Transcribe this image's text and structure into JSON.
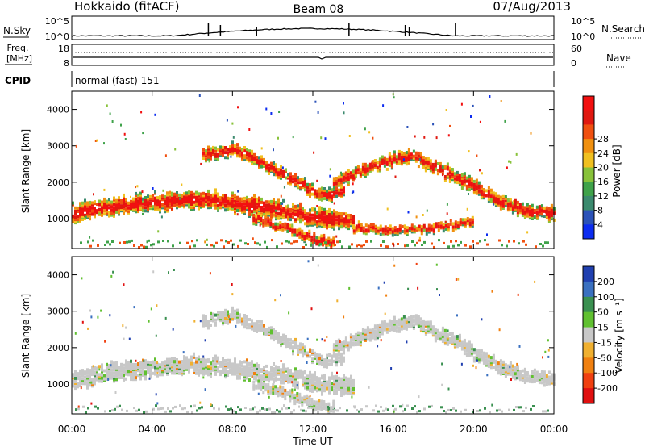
{
  "header": {
    "station": "Hokkaido (fitACF)",
    "beam": "Beam 08",
    "date": "07/Aug/2013"
  },
  "noise_panel": {
    "left_label": "N.Sky",
    "right_label": "N.Search",
    "y_ticks": [
      "10^5",
      "10^0"
    ],
    "right_ticks": [
      "10^5",
      "10^0"
    ]
  },
  "freq_panel": {
    "left_label_line1": "Freq.",
    "left_label_line2": "[MHz]",
    "left_ticks": [
      "18",
      "8"
    ],
    "right_label": "Nave",
    "right_ticks": [
      "60",
      "0"
    ]
  },
  "cpid_panel": {
    "label": "CPID",
    "value": "normal (fast) 151"
  },
  "x_axis": {
    "label": "Time UT",
    "ticks": [
      "00:00",
      "04:00",
      "08:00",
      "12:00",
      "16:00",
      "20:00",
      "00:00"
    ]
  },
  "chart_data": [
    {
      "type": "heatmap",
      "name": "power",
      "x": "Time UT (hours)",
      "xlim": [
        0,
        24
      ],
      "ylabel": "Slant Range [km]",
      "ylim": [
        180,
        4500
      ],
      "y_ticks": [
        "1000",
        "2000",
        "3000",
        "4000"
      ],
      "colorbar_label": "Power [dB]",
      "colorbar_ticks": [
        "4",
        "8",
        "12",
        "16",
        "20",
        "24",
        "28"
      ],
      "colorbar_colors": [
        "#0c2cf0",
        "#2b52b8",
        "#3b8a6e",
        "#3fa24a",
        "#88c23a",
        "#f0c020",
        "#f09010",
        "#f05010",
        "#e01810",
        "#f21010"
      ],
      "echo_bands": [
        {
          "t": [
            0,
            2,
            4,
            6,
            8,
            10,
            12,
            13,
            14
          ],
          "r": [
            1100,
            1300,
            1400,
            1500,
            1400,
            1250,
            1000,
            950,
            900
          ],
          "width": 450
        },
        {
          "t": [
            13,
            14.5,
            16,
            17,
            18,
            19.5,
            21,
            22.5,
            24
          ],
          "r": [
            1900,
            2300,
            2600,
            2700,
            2400,
            2000,
            1500,
            1200,
            1100
          ],
          "width": 330
        },
        {
          "t": [
            6.5,
            8,
            9.5,
            11,
            12.5,
            13.5
          ],
          "r": [
            2700,
            2850,
            2500,
            2000,
            1600,
            1700
          ],
          "width": 300
        },
        {
          "t": [
            9,
            10.5,
            12,
            13
          ],
          "r": [
            1000,
            700,
            400,
            300
          ],
          "width": 250
        },
        {
          "t": [
            14,
            16,
            18,
            20
          ],
          "r": [
            700,
            650,
            700,
            900
          ],
          "width": 200
        }
      ]
    },
    {
      "type": "heatmap",
      "name": "velocity",
      "x": "Time UT (hours)",
      "xlim": [
        0,
        24
      ],
      "ylabel": "Slant Range [km]",
      "ylim": [
        180,
        4500
      ],
      "y_ticks": [
        "1000",
        "2000",
        "3000",
        "4000"
      ],
      "colorbar_label": "Velocity [m s⁻¹]",
      "colorbar_ticks": [
        "200",
        "100",
        "50",
        "15",
        "-15",
        "-50",
        "-100",
        "-200"
      ],
      "colorbar_colors": [
        "#2040b0",
        "#3a70c0",
        "#3a9050",
        "#60c030",
        "#c8c8c8",
        "#f0b030",
        "#f08010",
        "#f04010",
        "#e01010"
      ],
      "echo_bands": [
        {
          "t": [
            0,
            2,
            4,
            6,
            8,
            10,
            12,
            13,
            14
          ],
          "r": [
            1100,
            1300,
            1400,
            1500,
            1400,
            1250,
            1000,
            950,
            900
          ],
          "width": 450
        },
        {
          "t": [
            13,
            14.5,
            16,
            17,
            18,
            19.5,
            21,
            22.5,
            24
          ],
          "r": [
            1900,
            2300,
            2600,
            2700,
            2400,
            2000,
            1500,
            1200,
            1100
          ],
          "width": 330
        },
        {
          "t": [
            6.5,
            8,
            9.5,
            11,
            12.5,
            13.5
          ],
          "r": [
            2700,
            2850,
            2500,
            2000,
            1600,
            1700
          ],
          "width": 300
        },
        {
          "t": [
            9,
            10.5,
            12,
            13
          ],
          "r": [
            1000,
            700,
            400,
            300
          ],
          "width": 250
        }
      ]
    }
  ]
}
